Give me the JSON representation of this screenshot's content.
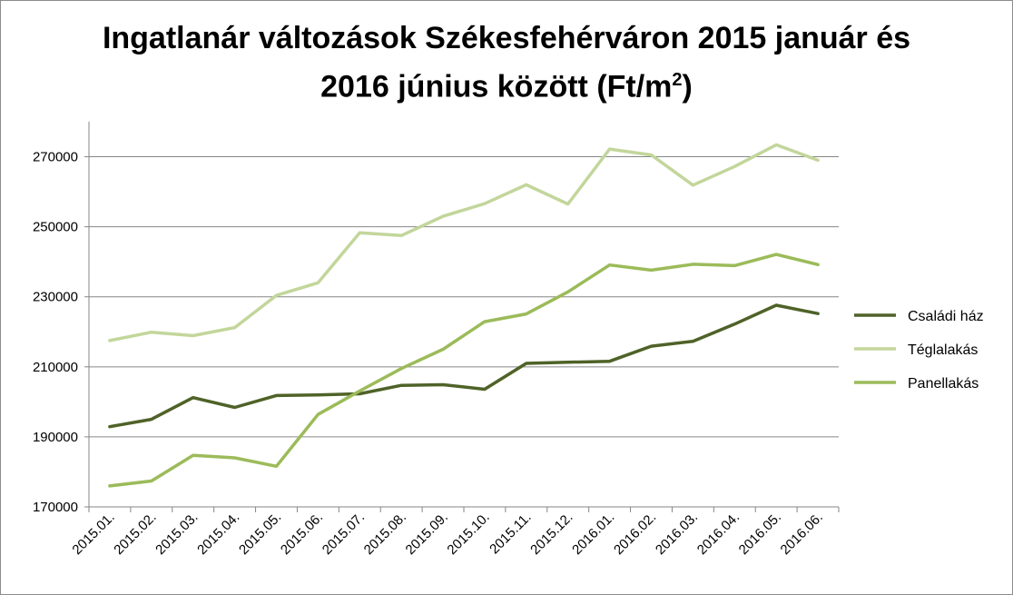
{
  "chart_data": {
    "type": "line",
    "title_line1": "Ingatlanár változások Székesfehérváron 2015 január és",
    "title_line2_pre": "2016 június között (Ft/m",
    "title_line2_sup": "2",
    "title_line2_post": ")",
    "categories": [
      "2015.01.",
      "2015.02.",
      "2015.03.",
      "2015.04.",
      "2015.05.",
      "2015.06.",
      "2015.07.",
      "2015.08.",
      "2015.09.",
      "2015.10.",
      "2015.11.",
      "2015.12.",
      "2016.01.",
      "2016.02.",
      "2016.03.",
      "2016.04.",
      "2016.05.",
      "2016.06."
    ],
    "y_ticks": [
      "270000",
      "250000",
      "230000",
      "210000",
      "190000",
      "170000"
    ],
    "ylim": [
      170000,
      280000
    ],
    "grid": true,
    "legend_position": "right",
    "series": [
      {
        "name": "Családi ház",
        "color": "#4f6228",
        "values": [
          192900,
          195000,
          201200,
          198400,
          201800,
          202000,
          202300,
          204700,
          204900,
          203600,
          211000,
          211300,
          211600,
          215900,
          217300,
          222200,
          227600,
          225200
        ]
      },
      {
        "name": "Téglalakás",
        "color": "#c3d69b",
        "values": [
          217500,
          219900,
          218900,
          221200,
          230400,
          234000,
          248300,
          247500,
          253000,
          256600,
          262000,
          256500,
          272200,
          270500,
          261900,
          267200,
          273400,
          269000
        ]
      },
      {
        "name": "Panellakás",
        "color": "#9bbb59",
        "values": [
          176000,
          177400,
          184700,
          184000,
          181600,
          196400,
          203100,
          209500,
          215000,
          222900,
          225100,
          231400,
          239100,
          237600,
          239300,
          238900,
          242100,
          239200
        ]
      }
    ]
  }
}
